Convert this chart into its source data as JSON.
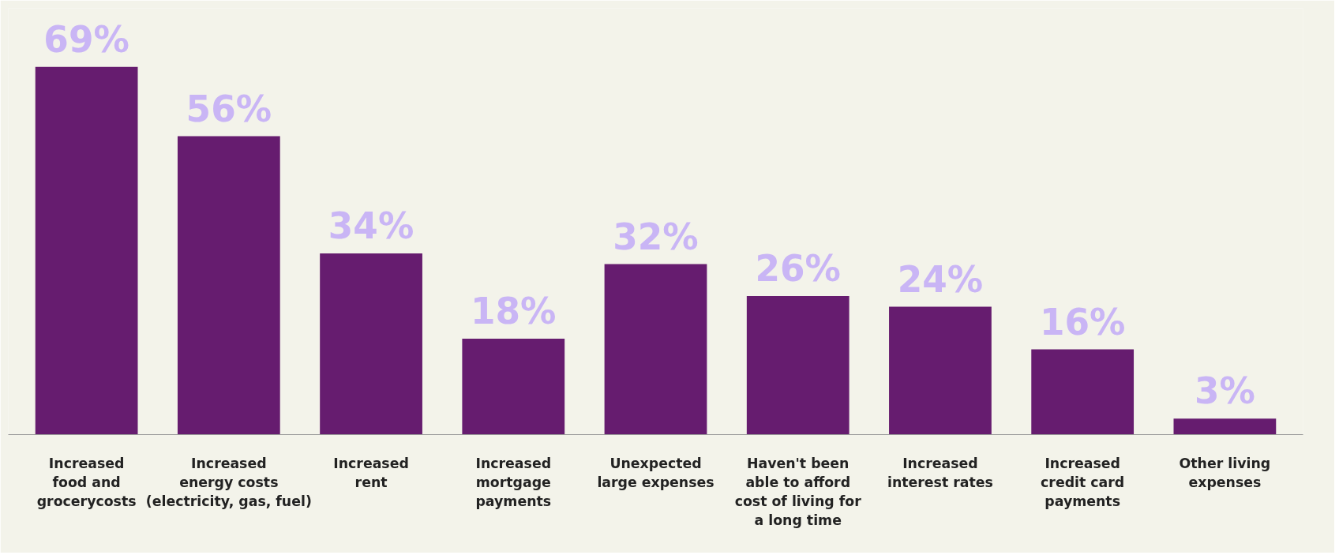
{
  "chart_data": {
    "type": "bar",
    "categories": [
      "Increased\nfood and\ngrocerycosts",
      "Increased\nenergy costs\n(electricity, gas, fuel)",
      "Increased\nrent",
      "Increased\nmortgage\npayments",
      "Unexpected\nlarge expenses",
      "Haven't been\nable to afford\ncost of living for\na long time",
      "Increased\ninterest rates",
      "Increased\ncredit card\npayments",
      "Other living\nexpenses"
    ],
    "values": [
      69,
      56,
      34,
      18,
      32,
      26,
      24,
      16,
      3
    ],
    "value_labels": [
      "69%",
      "56%",
      "34%",
      "18%",
      "32%",
      "26%",
      "24%",
      "16%",
      "3%"
    ],
    "color": "#661c6f",
    "ylim": [
      0,
      80
    ],
    "tick_labels": "x",
    "grid": false
  }
}
